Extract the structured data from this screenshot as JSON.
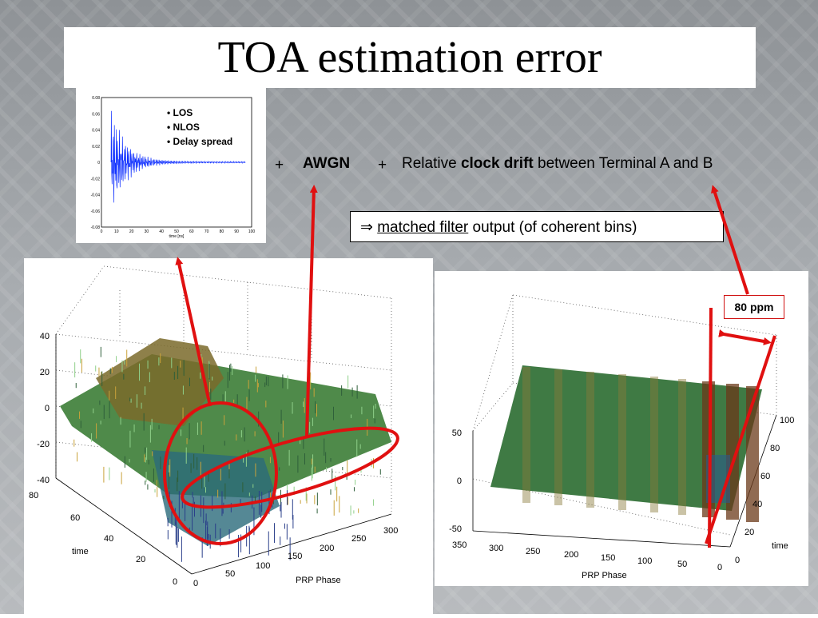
{
  "slide": {
    "title": "TOA estimation error",
    "cir_legend": [
      "• LOS",
      "• NLOS",
      "• Delay spread"
    ],
    "cir_plot": {
      "y_ticks": [
        "0.08",
        "0.06",
        "0.04",
        "0.02",
        "0",
        "-0.02",
        "-0.04",
        "-0.06",
        "-0.08"
      ],
      "x_ticks": [
        "0",
        "10",
        "20",
        "30",
        "40",
        "50",
        "60",
        "70",
        "80",
        "90",
        "100"
      ],
      "xlabel": "time [ns]"
    },
    "formula": {
      "plus1": "+",
      "awgn": "AWGN",
      "plus2": "+",
      "relative": "Relative",
      "clock_drift": "clock drift",
      "between": "between Terminal A and B"
    },
    "matched_filter": {
      "arrow": "⇒",
      "underlined": "matched filter",
      "rest": " output (of coherent bins)"
    },
    "ppm_label": "80 ppm",
    "surface_left": {
      "z_ticks": [
        "40",
        "20",
        "0",
        "-20",
        "-40"
      ],
      "time_ticks": [
        "80",
        "60",
        "40",
        "20",
        "0"
      ],
      "phase_ticks": [
        "0",
        "50",
        "100",
        "150",
        "200",
        "250",
        "300"
      ],
      "ylabel": "time",
      "xlabel": "PRP Phase"
    },
    "surface_right": {
      "z_ticks": [
        "50",
        "0",
        "-50"
      ],
      "phase_ticks": [
        "350",
        "300",
        "250",
        "200",
        "150",
        "100",
        "50",
        "0"
      ],
      "time_ticks": [
        "100",
        "80",
        "60",
        "40",
        "20",
        "0"
      ],
      "ylabel": "time",
      "xlabel": "PRP Phase"
    },
    "colors": {
      "annotation_red": "#e01010",
      "surface_green": "#4f8a4a",
      "plot_blue": "#1030ff"
    }
  }
}
